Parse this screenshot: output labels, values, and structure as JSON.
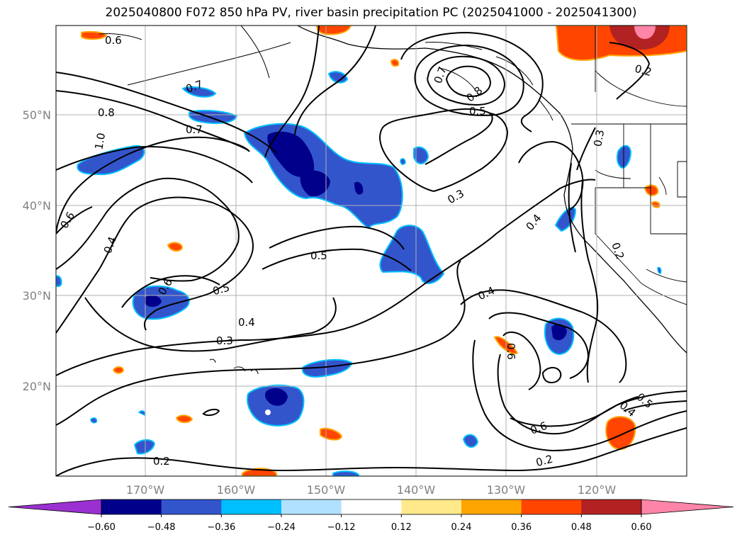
{
  "title": "2025040800 F072 850 hPa PV, river basin precipitation PC (2025041000 - 2025041300)",
  "map": {
    "lat_labels": [
      "50°N",
      "40°N",
      "30°N",
      "20°N"
    ],
    "lon_labels": [
      "170°W",
      "160°W",
      "150°W",
      "140°W",
      "130°W",
      "120°W"
    ],
    "contour_labels": [
      "0.6",
      "0.7",
      "0.8",
      "1.0",
      "0.6",
      "0.7",
      "0.4",
      "0.6",
      "0.5",
      "0.5",
      "0.4",
      "0.3",
      "0.3",
      "0.7",
      "0.8",
      "0.5",
      "0.4",
      "0.3",
      "0.4",
      "0.6",
      "0.2",
      "0.2",
      "0.4",
      "0.5",
      "0.6",
      "0.2",
      "0.2"
    ]
  },
  "colorbar": {
    "ticks": [
      "−0.60",
      "−0.48",
      "−0.36",
      "−0.24",
      "−0.12",
      "0.12",
      "0.24",
      "0.36",
      "0.48",
      "0.60"
    ],
    "colors": [
      "#9b30d0",
      "#00008b",
      "#3355cc",
      "#00bfff",
      "#b0e2ff",
      "#ffffff",
      "#ffe98a",
      "#ffa500",
      "#ff4500",
      "#b22222",
      "#ff85a8"
    ]
  }
}
